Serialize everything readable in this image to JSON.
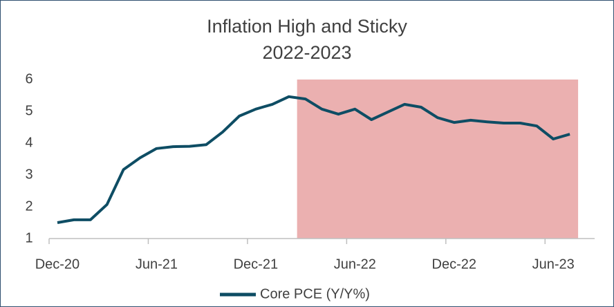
{
  "chart_data": {
    "type": "line",
    "title": [
      "Inflation High and Sticky",
      "2022-2023"
    ],
    "categories": [
      "Dec-20",
      null,
      null,
      null,
      null,
      null,
      "Jun-21",
      null,
      null,
      null,
      null,
      null,
      "Dec-21",
      null,
      null,
      null,
      null,
      null,
      "Jun-22",
      null,
      null,
      null,
      null,
      null,
      "Dec-22",
      null,
      null,
      null,
      null,
      null,
      "Jun-23",
      null,
      null
    ],
    "series": [
      {
        "name": "Core PCE (Y/Y%)",
        "color": "#0e4d64",
        "values": [
          1.5,
          1.59,
          1.59,
          2.07,
          3.17,
          3.54,
          3.83,
          3.89,
          3.9,
          3.95,
          4.35,
          4.85,
          5.07,
          5.22,
          5.46,
          5.39,
          5.07,
          4.91,
          5.07,
          4.74,
          4.98,
          5.22,
          5.13,
          4.8,
          4.65,
          4.72,
          4.67,
          4.63,
          4.63,
          4.54,
          4.13,
          4.28,
          null
        ]
      }
    ],
    "ylim": [
      1,
      6
    ],
    "yticks": [
      1,
      2,
      3,
      4,
      5,
      6
    ],
    "grid": false,
    "highlight": {
      "start": 15,
      "end": 31,
      "color": "#ebb0b0"
    },
    "legend": "bottom"
  }
}
